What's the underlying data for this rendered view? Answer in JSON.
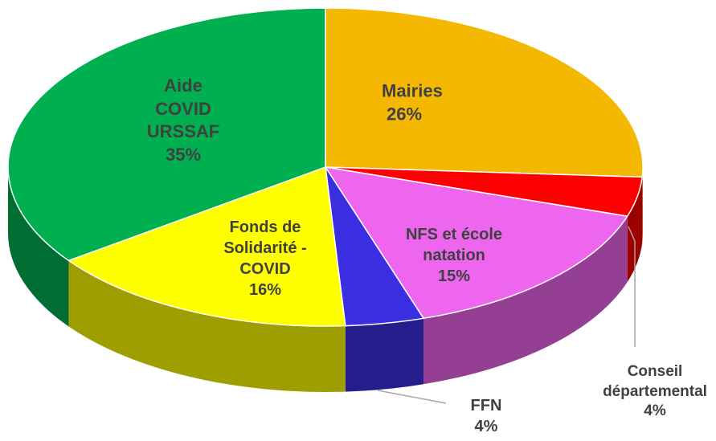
{
  "chart_data": {
    "type": "pie3d",
    "categories": [
      "Mairies",
      "Conseil départemental",
      "NFS et école natation",
      "FFN",
      "Fonds de Solidarité - COVID",
      "Aide COVID URSSAF"
    ],
    "values": [
      26,
      4,
      15,
      4,
      16,
      35
    ],
    "value_labels": [
      "26%",
      "4%",
      "15%",
      "4%",
      "16%",
      "35%"
    ],
    "colors": [
      "#f5b800",
      "#ff0000",
      "#ee66ee",
      "#3a2ee0",
      "#ffff00",
      "#00b050"
    ]
  }
}
